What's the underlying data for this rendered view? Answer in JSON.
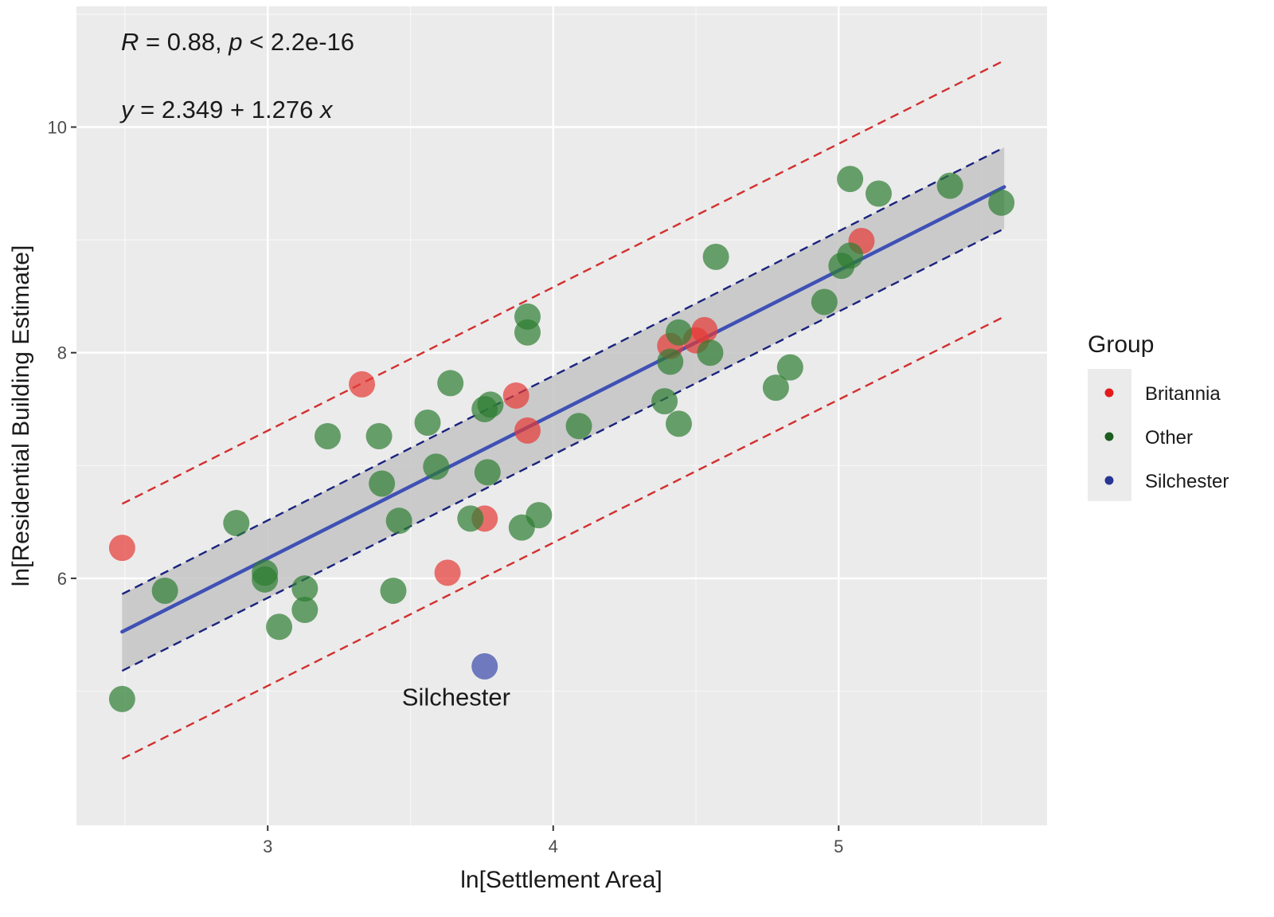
{
  "chart_data": {
    "type": "scatter",
    "xlabel": "ln[Settlement Area]",
    "ylabel": "ln[Residential Building Estimate]",
    "xlim": [
      2.33,
      5.73
    ],
    "ylim": [
      3.81,
      11.07
    ],
    "xticks": [
      3,
      4,
      5
    ],
    "yticks": [
      6,
      8,
      10
    ],
    "grid": true,
    "annotations": {
      "stat": {
        "R": "R",
        "rest": " = 0.88, ",
        "p": "p",
        "tail": " < 2.2e-16"
      },
      "equation": {
        "y": "y",
        "rest": " = 2.349 + 1.276 ",
        "x": "x"
      }
    },
    "legend": {
      "title": "Group",
      "placement": "right",
      "entries": [
        {
          "name": "Britannia",
          "color": "#E41A1C"
        },
        {
          "name": "Other",
          "color": "#1B5E20"
        },
        {
          "name": "Silchester",
          "color": "#283593"
        }
      ]
    },
    "fit": {
      "intercept": 2.349,
      "slope": 1.276,
      "x_range": [
        2.49,
        5.58
      ],
      "color": "#3F51B5"
    },
    "confidence_band": {
      "x": [
        2.49,
        5.58
      ],
      "lower": [
        5.18,
        9.1
      ],
      "upper": [
        5.86,
        9.82
      ],
      "fill": "#c4c4c4",
      "line_color": "#1A237E"
    },
    "prediction_band": {
      "x": [
        2.49,
        5.58
      ],
      "lower": [
        4.4,
        8.32
      ],
      "upper": [
        6.66,
        10.59
      ],
      "color": "#D32F2F"
    },
    "series": [
      {
        "name": "Britannia",
        "color": "#E53935",
        "points": [
          [
            2.49,
            6.27
          ],
          [
            3.33,
            7.72
          ],
          [
            3.63,
            6.05
          ],
          [
            3.76,
            6.53
          ],
          [
            3.87,
            7.62
          ],
          [
            3.91,
            7.31
          ],
          [
            4.41,
            8.06
          ],
          [
            4.5,
            8.11
          ],
          [
            4.53,
            8.2
          ],
          [
            5.08,
            8.99
          ]
        ]
      },
      {
        "name": "Other",
        "color": "#2E7D32",
        "points": [
          [
            2.49,
            4.93
          ],
          [
            2.64,
            5.89
          ],
          [
            2.89,
            6.49
          ],
          [
            2.99,
            6.05
          ],
          [
            2.99,
            5.99
          ],
          [
            3.04,
            5.57
          ],
          [
            3.13,
            5.91
          ],
          [
            3.13,
            5.72
          ],
          [
            3.21,
            7.26
          ],
          [
            3.39,
            7.26
          ],
          [
            3.4,
            6.84
          ],
          [
            3.44,
            5.89
          ],
          [
            3.46,
            6.51
          ],
          [
            3.56,
            7.38
          ],
          [
            3.59,
            6.99
          ],
          [
            3.64,
            7.73
          ],
          [
            3.71,
            6.53
          ],
          [
            3.76,
            7.5
          ],
          [
            3.77,
            6.94
          ],
          [
            3.78,
            7.54
          ],
          [
            3.89,
            6.45
          ],
          [
            3.91,
            8.18
          ],
          [
            3.91,
            8.32
          ],
          [
            3.95,
            6.56
          ],
          [
            4.09,
            7.35
          ],
          [
            4.39,
            7.57
          ],
          [
            4.41,
            7.92
          ],
          [
            4.44,
            8.18
          ],
          [
            4.44,
            7.37
          ],
          [
            4.55,
            8.0
          ],
          [
            4.57,
            8.85
          ],
          [
            4.78,
            7.69
          ],
          [
            4.83,
            7.87
          ],
          [
            4.95,
            8.45
          ],
          [
            5.01,
            8.77
          ],
          [
            5.04,
            8.86
          ],
          [
            5.04,
            9.54
          ],
          [
            5.14,
            9.41
          ],
          [
            5.39,
            9.48
          ],
          [
            5.57,
            9.33
          ]
        ]
      },
      {
        "name": "Silchester",
        "color": "#3949AB",
        "points": [
          [
            3.76,
            5.22
          ]
        ],
        "point_label": "Silchester",
        "label_offset": [
          3.66,
          4.95
        ]
      }
    ]
  }
}
